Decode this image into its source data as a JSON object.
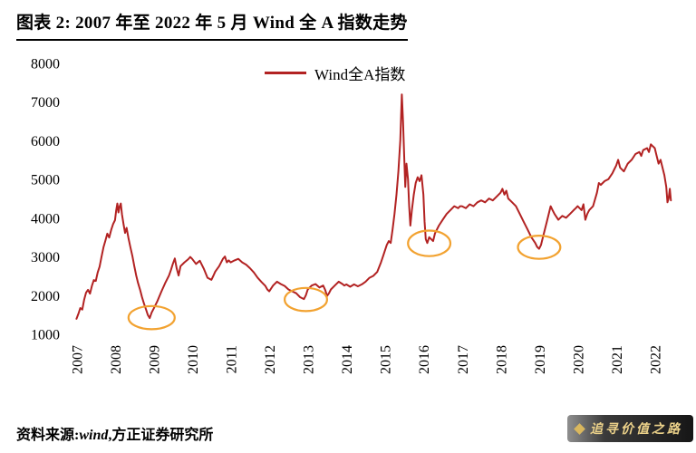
{
  "header": {
    "title": "图表 2: 2007 年至 2022 年 5 月 Wind 全 A 指数走势"
  },
  "legend": {
    "label": "Wind全A指数"
  },
  "footer": {
    "source_prefix": "资料来源:",
    "source_vendor": "wind",
    "source_suffix": ",方正证券研究所"
  },
  "watermark": {
    "text": "追寻价值之路"
  },
  "chart_data": {
    "type": "line",
    "title": "图表 2: 2007 年至 2022 年 5 月 Wind 全 A 指数走势",
    "xlabel": "",
    "ylabel": "",
    "grid": false,
    "legend_position": "top-center",
    "xlim": [
      2006.85,
      2022.6
    ],
    "ylim": [
      1000,
      8000
    ],
    "yticks": [
      1000,
      2000,
      3000,
      4000,
      5000,
      6000,
      7000,
      8000
    ],
    "xticks": [
      2007,
      2008,
      2009,
      2010,
      2011,
      2012,
      2013,
      2014,
      2015,
      2016,
      2017,
      2018,
      2019,
      2020,
      2021,
      2022
    ],
    "series": [
      {
        "name": "Wind全A指数",
        "color": "#b22222",
        "points": [
          [
            2007.0,
            1400
          ],
          [
            2007.05,
            1530
          ],
          [
            2007.1,
            1680
          ],
          [
            2007.15,
            1640
          ],
          [
            2007.2,
            1900
          ],
          [
            2007.25,
            2080
          ],
          [
            2007.3,
            2150
          ],
          [
            2007.35,
            2050
          ],
          [
            2007.4,
            2250
          ],
          [
            2007.45,
            2400
          ],
          [
            2007.5,
            2380
          ],
          [
            2007.55,
            2600
          ],
          [
            2007.6,
            2750
          ],
          [
            2007.65,
            3000
          ],
          [
            2007.7,
            3250
          ],
          [
            2007.75,
            3420
          ],
          [
            2007.8,
            3600
          ],
          [
            2007.85,
            3500
          ],
          [
            2007.9,
            3700
          ],
          [
            2007.95,
            3850
          ],
          [
            2008.0,
            3950
          ],
          [
            2008.03,
            4200
          ],
          [
            2008.06,
            4380
          ],
          [
            2008.09,
            4150
          ],
          [
            2008.12,
            4300
          ],
          [
            2008.15,
            4380
          ],
          [
            2008.18,
            4100
          ],
          [
            2008.22,
            3850
          ],
          [
            2008.26,
            3620
          ],
          [
            2008.3,
            3750
          ],
          [
            2008.35,
            3480
          ],
          [
            2008.4,
            3250
          ],
          [
            2008.45,
            3020
          ],
          [
            2008.5,
            2760
          ],
          [
            2008.55,
            2520
          ],
          [
            2008.6,
            2320
          ],
          [
            2008.65,
            2150
          ],
          [
            2008.7,
            1960
          ],
          [
            2008.75,
            1800
          ],
          [
            2008.8,
            1650
          ],
          [
            2008.85,
            1500
          ],
          [
            2008.9,
            1420
          ],
          [
            2008.95,
            1560
          ],
          [
            2009.0,
            1660
          ],
          [
            2009.1,
            1860
          ],
          [
            2009.2,
            2100
          ],
          [
            2009.3,
            2320
          ],
          [
            2009.4,
            2520
          ],
          [
            2009.45,
            2660
          ],
          [
            2009.5,
            2820
          ],
          [
            2009.55,
            2960
          ],
          [
            2009.6,
            2700
          ],
          [
            2009.65,
            2520
          ],
          [
            2009.7,
            2760
          ],
          [
            2009.8,
            2860
          ],
          [
            2009.9,
            2940
          ],
          [
            2009.95,
            3000
          ],
          [
            2010.0,
            2950
          ],
          [
            2010.1,
            2820
          ],
          [
            2010.2,
            2900
          ],
          [
            2010.3,
            2700
          ],
          [
            2010.4,
            2460
          ],
          [
            2010.5,
            2410
          ],
          [
            2010.55,
            2510
          ],
          [
            2010.6,
            2620
          ],
          [
            2010.7,
            2760
          ],
          [
            2010.8,
            2950
          ],
          [
            2010.85,
            3010
          ],
          [
            2010.9,
            2860
          ],
          [
            2010.95,
            2910
          ],
          [
            2011.0,
            2860
          ],
          [
            2011.1,
            2910
          ],
          [
            2011.2,
            2950
          ],
          [
            2011.3,
            2860
          ],
          [
            2011.4,
            2800
          ],
          [
            2011.5,
            2710
          ],
          [
            2011.6,
            2600
          ],
          [
            2011.7,
            2460
          ],
          [
            2011.8,
            2350
          ],
          [
            2011.9,
            2250
          ],
          [
            2011.95,
            2160
          ],
          [
            2012.0,
            2110
          ],
          [
            2012.1,
            2260
          ],
          [
            2012.2,
            2360
          ],
          [
            2012.3,
            2300
          ],
          [
            2012.4,
            2250
          ],
          [
            2012.5,
            2160
          ],
          [
            2012.6,
            2110
          ],
          [
            2012.7,
            2060
          ],
          [
            2012.8,
            1960
          ],
          [
            2012.9,
            1910
          ],
          [
            2012.95,
            2010
          ],
          [
            2013.0,
            2160
          ],
          [
            2013.1,
            2260
          ],
          [
            2013.2,
            2300
          ],
          [
            2013.3,
            2210
          ],
          [
            2013.4,
            2260
          ],
          [
            2013.45,
            2150
          ],
          [
            2013.5,
            1990
          ],
          [
            2013.55,
            2060
          ],
          [
            2013.6,
            2160
          ],
          [
            2013.7,
            2260
          ],
          [
            2013.8,
            2360
          ],
          [
            2013.9,
            2300
          ],
          [
            2013.95,
            2260
          ],
          [
            2014.0,
            2290
          ],
          [
            2014.1,
            2230
          ],
          [
            2014.2,
            2290
          ],
          [
            2014.3,
            2240
          ],
          [
            2014.4,
            2290
          ],
          [
            2014.5,
            2360
          ],
          [
            2014.6,
            2460
          ],
          [
            2014.7,
            2510
          ],
          [
            2014.8,
            2610
          ],
          [
            2014.9,
            2860
          ],
          [
            2014.95,
            3010
          ],
          [
            2015.0,
            3160
          ],
          [
            2015.05,
            3310
          ],
          [
            2015.1,
            3410
          ],
          [
            2015.15,
            3360
          ],
          [
            2015.2,
            3710
          ],
          [
            2015.25,
            4110
          ],
          [
            2015.3,
            4610
          ],
          [
            2015.35,
            5210
          ],
          [
            2015.4,
            6010
          ],
          [
            2015.44,
            7200
          ],
          [
            2015.47,
            6510
          ],
          [
            2015.5,
            5610
          ],
          [
            2015.53,
            4810
          ],
          [
            2015.56,
            5410
          ],
          [
            2015.6,
            5010
          ],
          [
            2015.63,
            4310
          ],
          [
            2015.66,
            3810
          ],
          [
            2015.7,
            4210
          ],
          [
            2015.75,
            4610
          ],
          [
            2015.8,
            4910
          ],
          [
            2015.85,
            5060
          ],
          [
            2015.9,
            4960
          ],
          [
            2015.95,
            5110
          ],
          [
            2016.0,
            4610
          ],
          [
            2016.03,
            3910
          ],
          [
            2016.06,
            3460
          ],
          [
            2016.1,
            3360
          ],
          [
            2016.15,
            3510
          ],
          [
            2016.2,
            3460
          ],
          [
            2016.25,
            3410
          ],
          [
            2016.3,
            3610
          ],
          [
            2016.4,
            3810
          ],
          [
            2016.5,
            3960
          ],
          [
            2016.6,
            4110
          ],
          [
            2016.7,
            4210
          ],
          [
            2016.8,
            4310
          ],
          [
            2016.9,
            4260
          ],
          [
            2016.95,
            4310
          ],
          [
            2017.0,
            4310
          ],
          [
            2017.1,
            4260
          ],
          [
            2017.2,
            4360
          ],
          [
            2017.3,
            4310
          ],
          [
            2017.4,
            4410
          ],
          [
            2017.5,
            4460
          ],
          [
            2017.6,
            4410
          ],
          [
            2017.7,
            4510
          ],
          [
            2017.8,
            4460
          ],
          [
            2017.9,
            4560
          ],
          [
            2017.95,
            4610
          ],
          [
            2018.0,
            4660
          ],
          [
            2018.05,
            4760
          ],
          [
            2018.1,
            4610
          ],
          [
            2018.15,
            4710
          ],
          [
            2018.2,
            4510
          ],
          [
            2018.3,
            4410
          ],
          [
            2018.4,
            4310
          ],
          [
            2018.5,
            4110
          ],
          [
            2018.6,
            3910
          ],
          [
            2018.7,
            3710
          ],
          [
            2018.8,
            3510
          ],
          [
            2018.9,
            3360
          ],
          [
            2018.95,
            3260
          ],
          [
            2019.0,
            3210
          ],
          [
            2019.05,
            3310
          ],
          [
            2019.1,
            3510
          ],
          [
            2019.2,
            3910
          ],
          [
            2019.3,
            4310
          ],
          [
            2019.35,
            4210
          ],
          [
            2019.4,
            4110
          ],
          [
            2019.5,
            3960
          ],
          [
            2019.6,
            4060
          ],
          [
            2019.7,
            4010
          ],
          [
            2019.8,
            4110
          ],
          [
            2019.9,
            4210
          ],
          [
            2019.95,
            4260
          ],
          [
            2020.0,
            4310
          ],
          [
            2020.1,
            4210
          ],
          [
            2020.15,
            4360
          ],
          [
            2020.2,
            3960
          ],
          [
            2020.25,
            4110
          ],
          [
            2020.3,
            4210
          ],
          [
            2020.4,
            4310
          ],
          [
            2020.5,
            4660
          ],
          [
            2020.55,
            4910
          ],
          [
            2020.6,
            4860
          ],
          [
            2020.7,
            4960
          ],
          [
            2020.8,
            5010
          ],
          [
            2020.9,
            5160
          ],
          [
            2020.95,
            5260
          ],
          [
            2021.0,
            5360
          ],
          [
            2021.05,
            5510
          ],
          [
            2021.1,
            5310
          ],
          [
            2021.2,
            5210
          ],
          [
            2021.3,
            5410
          ],
          [
            2021.4,
            5510
          ],
          [
            2021.5,
            5660
          ],
          [
            2021.6,
            5710
          ],
          [
            2021.65,
            5610
          ],
          [
            2021.7,
            5760
          ],
          [
            2021.8,
            5810
          ],
          [
            2021.85,
            5710
          ],
          [
            2021.9,
            5910
          ],
          [
            2021.95,
            5860
          ],
          [
            2022.0,
            5810
          ],
          [
            2022.05,
            5610
          ],
          [
            2022.1,
            5410
          ],
          [
            2022.15,
            5510
          ],
          [
            2022.2,
            5310
          ],
          [
            2022.25,
            5110
          ],
          [
            2022.3,
            4810
          ],
          [
            2022.33,
            4410
          ],
          [
            2022.36,
            4510
          ],
          [
            2022.39,
            4760
          ],
          [
            2022.42,
            4460
          ]
        ]
      }
    ],
    "annotations": {
      "shape": "ellipse",
      "color": "#f2a230",
      "items": [
        {
          "cx": 2008.95,
          "cy": 1430,
          "rx": 0.6,
          "ry": 300
        },
        {
          "cx": 2012.95,
          "cy": 1900,
          "rx": 0.55,
          "ry": 300
        },
        {
          "cx": 2016.15,
          "cy": 3350,
          "rx": 0.55,
          "ry": 330
        },
        {
          "cx": 2019.0,
          "cy": 3250,
          "rx": 0.55,
          "ry": 300
        }
      ]
    }
  }
}
